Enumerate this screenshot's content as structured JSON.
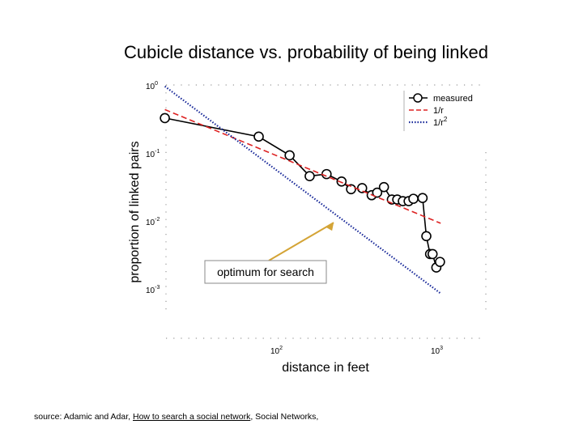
{
  "slide": {
    "title": "Cubicle distance vs. probability of being linked",
    "source_prefix": "source: Adamic and Adar, ",
    "source_link": "How to search a social network",
    "source_suffix": ", Social Networks,"
  },
  "chart_data": {
    "type": "line",
    "title": "",
    "xlabel": "distance in feet",
    "ylabel": "proportion of linked pairs",
    "xscale": "log",
    "yscale": "log",
    "xlim": [
      20,
      1200
    ],
    "ylim": [
      0.0006,
      1
    ],
    "x_ticks": [
      {
        "value": 100,
        "base": "10",
        "exp": "2"
      },
      {
        "value": 1000,
        "base": "10",
        "exp": "3"
      }
    ],
    "y_ticks": [
      {
        "value": 1,
        "base": "10",
        "exp": "0"
      },
      {
        "value": 0.1,
        "base": "10",
        "exp": "-1"
      },
      {
        "value": 0.01,
        "base": "10",
        "exp": "-2"
      },
      {
        "value": 0.001,
        "base": "10",
        "exp": "-3"
      }
    ],
    "legend_position": "top-right",
    "series": [
      {
        "name": "measured",
        "style": "solid-circles",
        "color": "#000000",
        "points": [
          [
            20,
            0.3
          ],
          [
            77,
            0.16
          ],
          [
            120,
            0.085
          ],
          [
            160,
            0.042
          ],
          [
            204,
            0.045
          ],
          [
            253,
            0.035
          ],
          [
            290,
            0.027
          ],
          [
            340,
            0.028
          ],
          [
            390,
            0.022
          ],
          [
            422,
            0.024
          ],
          [
            465,
            0.029
          ],
          [
            521,
            0.019
          ],
          [
            563,
            0.019
          ],
          [
            610,
            0.018
          ],
          [
            663,
            0.018
          ],
          [
            710,
            0.0195
          ],
          [
            810,
            0.02
          ],
          [
            855,
            0.0055
          ],
          [
            902,
            0.003
          ],
          [
            935,
            0.003
          ],
          [
            987,
            0.0019
          ],
          [
            1040,
            0.0023
          ]
        ]
      },
      {
        "name": "1/r",
        "style": "dashed",
        "color": "#dd2222",
        "points": [
          [
            20,
            0.4
          ],
          [
            1050,
            0.0085
          ]
        ]
      },
      {
        "name": "1/r",
        "name_superscript": "2",
        "style": "dotted",
        "color": "#1a2a9a",
        "points": [
          [
            20,
            0.88
          ],
          [
            1050,
            0.00079
          ]
        ]
      }
    ],
    "annotation": {
      "text": "optimum for search",
      "arrow_target": [
        226,
        0.0087
      ],
      "arrow_color": "#d4a436"
    }
  }
}
